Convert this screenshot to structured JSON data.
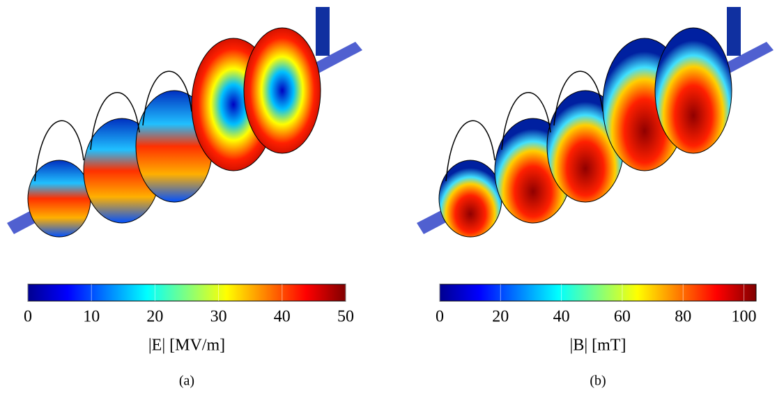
{
  "chart_data": [
    {
      "type": "colorbar",
      "label": "|E| [MV/m]",
      "caption": "(a)",
      "xlim": [
        0,
        50
      ],
      "xticks": [
        0,
        10,
        20,
        30,
        40,
        50
      ],
      "colormap": [
        "#00008f",
        "#0000ff",
        "#0080ff",
        "#00ffff",
        "#80ff80",
        "#ffff00",
        "#ff8000",
        "#ff0000",
        "#800000"
      ]
    },
    {
      "type": "colorbar",
      "label": "|B| [mT]",
      "caption": "(b)",
      "xlim": [
        0,
        104
      ],
      "xticks": [
        0,
        20,
        40,
        60,
        80,
        100
      ],
      "colormap": [
        "#00008f",
        "#0000ff",
        "#0080ff",
        "#00ffff",
        "#80ff80",
        "#ffff00",
        "#ff8000",
        "#ff0000",
        "#800000"
      ]
    }
  ]
}
